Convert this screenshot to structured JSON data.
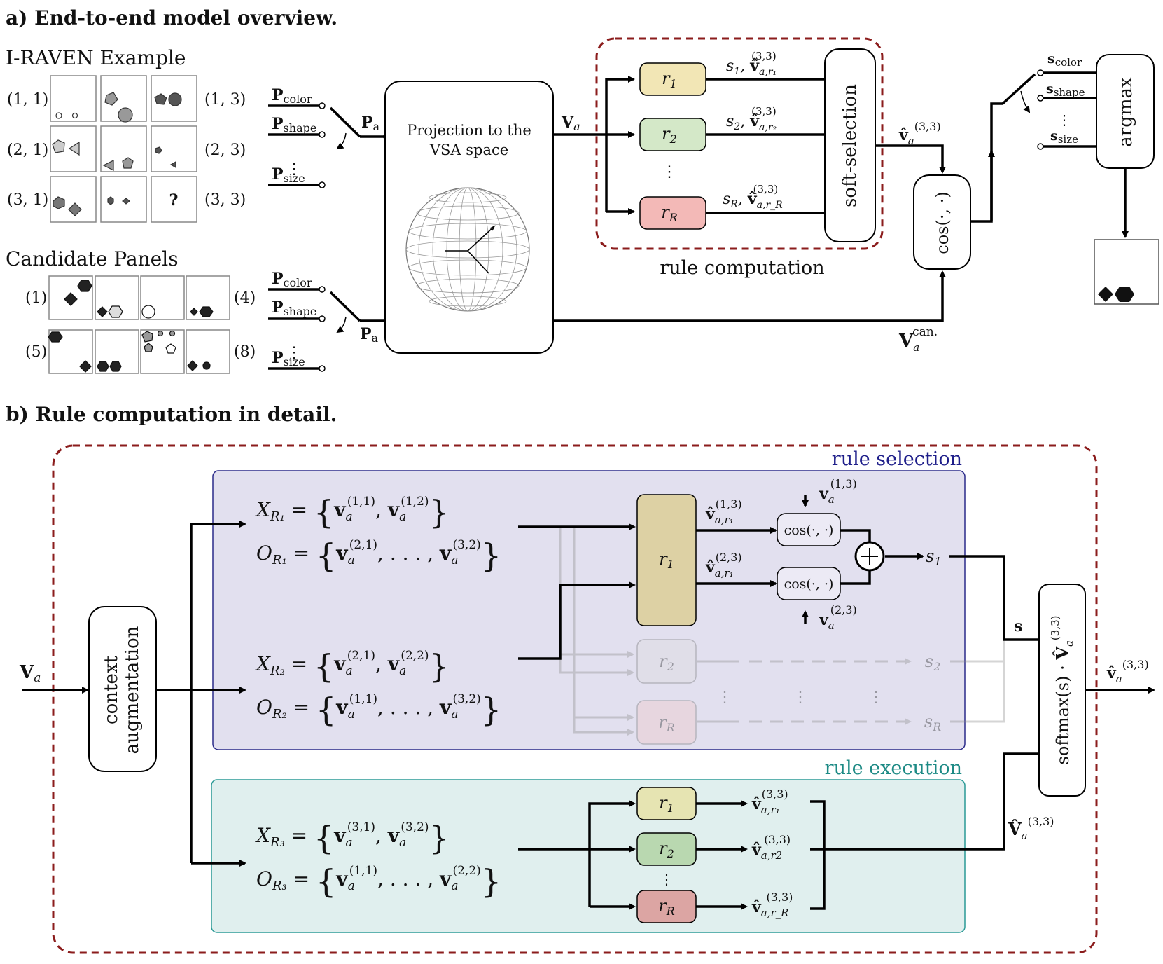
{
  "section_a": {
    "title": "a) End-to-end model overview.",
    "example_label": "I-RAVEN Example",
    "candidate_label": "Candidate Panels",
    "grid_labels": [
      "(1, 1)",
      "(1, 3)",
      "(2, 1)",
      "(2, 3)",
      "(3, 1)",
      "(3, 3)"
    ],
    "question_mark": "?",
    "candidate_numbers": [
      "(1)",
      "(4)",
      "(5)",
      "(8)"
    ],
    "switch_inputs": [
      "color",
      "shape",
      "size"
    ],
    "p_letter": "P",
    "p_a_sub": "a",
    "projection_text": [
      "Projection to the",
      "VSA space"
    ],
    "v_a": "V",
    "v_a_sub": "a",
    "rules": [
      "1",
      "2",
      "R"
    ],
    "soft_selection": "soft-selection",
    "rule_computation": "rule computation",
    "cos_label": "cos(·, ·)",
    "superscript": "(3,3)",
    "v_can_sup": "can.",
    "argmax": "argmax",
    "s_labels": [
      "color",
      "shape",
      "size"
    ],
    "colors": {
      "r1": "#f2e6b5",
      "r2": "#d4e8c8",
      "rR": "#f3b9b7",
      "dashed": "#8b1c1c"
    }
  },
  "section_b": {
    "title": "b) Rule computation in detail.",
    "rule_selection": "rule selection",
    "rule_execution": "rule execution",
    "context_augmentation": [
      "context",
      "augmentation"
    ],
    "equations": {
      "x1": [
        "(1,1)",
        "(1,2)"
      ],
      "o1": [
        "(2,1)",
        "(3,2)"
      ],
      "x2": [
        "(2,1)",
        "(2,2)"
      ],
      "o2": [
        "(1,1)",
        "(3,2)"
      ],
      "x3": [
        "(3,1)",
        "(3,2)"
      ],
      "o3": [
        "(1,1)",
        "(2,2)"
      ]
    },
    "r1_outputs": [
      "(1,3)",
      "(2,3)"
    ],
    "s_label": "s",
    "softmax": "softmax(s) · ",
    "colors": {
      "selection_bg": "#e2e0ef",
      "selection_border": "#2a2a8a",
      "selection_text": "#1f1f8a",
      "execution_bg": "#e0efee",
      "execution_border": "#2a9a96",
      "execution_text": "#1d8a85",
      "r1_box": "#ddd1a4",
      "exec_r1": "#e6e4b2",
      "exec_r2": "#b9d8b0",
      "exec_rR": "#dca5a3"
    }
  }
}
